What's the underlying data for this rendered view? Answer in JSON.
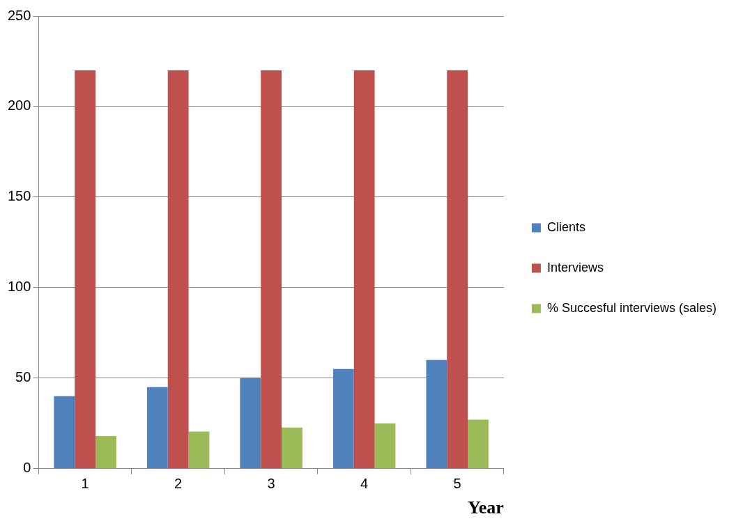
{
  "chart_data": {
    "type": "bar",
    "xlabel": "Year",
    "categories": [
      "1",
      "2",
      "3",
      "4",
      "5"
    ],
    "series": [
      {
        "name": "Clients",
        "color": "#4f81bd",
        "values": [
          40,
          45,
          50,
          55,
          60
        ]
      },
      {
        "name": "Interviews",
        "color": "#c0504d",
        "values": [
          220,
          220,
          220,
          220,
          220
        ]
      },
      {
        "name": "% Succesful interviews (sales)",
        "color": "#9bbb59",
        "values": [
          18,
          20.5,
          22.7,
          25,
          27
        ]
      }
    ],
    "ylim": [
      0,
      250
    ],
    "yticks": [
      0,
      50,
      100,
      150,
      200,
      250
    ],
    "grid": "y",
    "legend": "right"
  }
}
